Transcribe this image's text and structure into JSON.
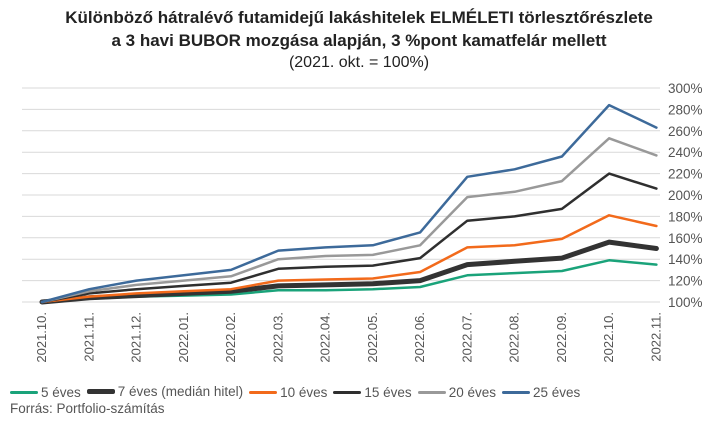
{
  "chart_data": {
    "type": "line",
    "title_lines": [
      "Különböző hátralévő futamidejű lakáshitelek ELMÉLETI törlesztőrészlete",
      "a 3 havi BUBOR mozgása alapján, 3 %pont kamatfelár mellett"
    ],
    "subtitle": "(2021. okt. = 100%)",
    "categories": [
      "2021.10.",
      "2021.11.",
      "2021.12.",
      "2022.01.",
      "2022.02.",
      "2022.03.",
      "2022.04.",
      "2022.05.",
      "2022.06.",
      "2022.07.",
      "2022.08.",
      "2022.09.",
      "2022.10.",
      "2022.11."
    ],
    "yticks": [
      "100%",
      "120%",
      "140%",
      "160%",
      "180%",
      "200%",
      "220%",
      "240%",
      "260%",
      "280%",
      "300%"
    ],
    "ylim": [
      100,
      300
    ],
    "grid": true,
    "legend_position": "bottom",
    "series": [
      {
        "name": "5 éves",
        "color": "#1aa37a",
        "values": [
          100,
          103,
          105,
          106,
          107,
          111,
          111,
          112,
          114,
          125,
          127,
          129,
          139,
          135
        ]
      },
      {
        "name": "7 éves (medián hitel)",
        "color": "#333333",
        "values": [
          100,
          104,
          106,
          108,
          110,
          115,
          116,
          117,
          120,
          135,
          138,
          141,
          156,
          150
        ]
      },
      {
        "name": "10 éves",
        "color": "#f26a1b",
        "values": [
          100,
          105,
          108,
          110,
          112,
          120,
          121,
          122,
          128,
          151,
          153,
          159,
          181,
          171
        ]
      },
      {
        "name": "15 éves",
        "color": "#2f2f2f",
        "values": [
          100,
          108,
          112,
          115,
          118,
          131,
          133,
          134,
          141,
          176,
          180,
          187,
          220,
          206
        ]
      },
      {
        "name": "20 éves",
        "color": "#999999",
        "values": [
          100,
          110,
          116,
          120,
          124,
          140,
          143,
          144,
          153,
          198,
          203,
          213,
          253,
          237
        ]
      },
      {
        "name": "25 éves",
        "color": "#3d6a9a",
        "values": [
          100,
          112,
          120,
          125,
          130,
          148,
          151,
          153,
          165,
          217,
          224,
          236,
          284,
          263
        ]
      }
    ]
  },
  "source": "Forrás: Portfolio-számítás"
}
